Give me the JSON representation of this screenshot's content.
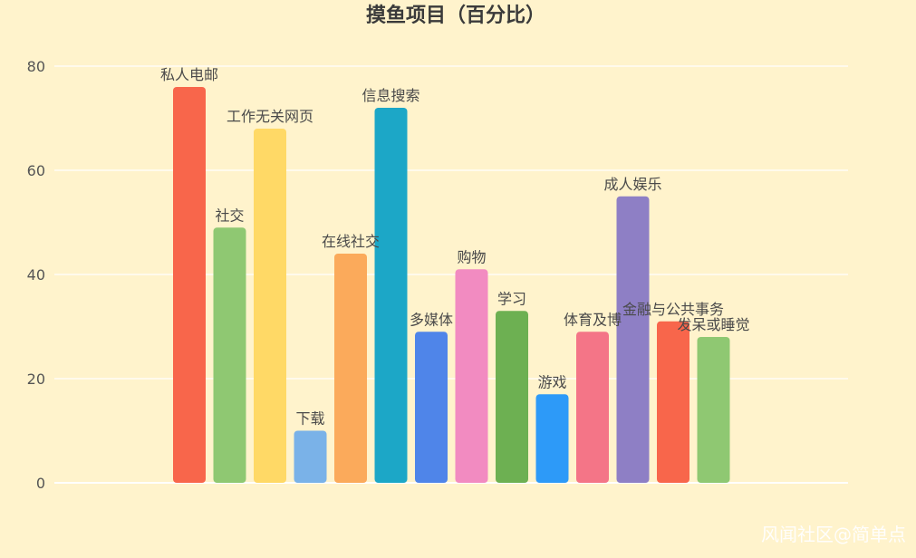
{
  "chart_data": {
    "type": "bar",
    "title": "摸鱼项目（百分比）",
    "xlabel": "",
    "ylabel": "",
    "ylim": [
      0,
      80
    ],
    "yticks": [
      0,
      20,
      40,
      60,
      80
    ],
    "grid": true,
    "categories": [
      "私人电邮",
      "社交",
      "工作无关网页",
      "下载",
      "在线社交",
      "信息搜索",
      "多媒体",
      "购物",
      "学习",
      "游戏",
      "体育及博彩",
      "成人娱乐",
      "金融与公共事务",
      "发呆或睡觉"
    ],
    "visible_labels": [
      "私人电邮",
      "社交",
      "工作无关网页",
      "下载",
      "在线社交",
      "信息搜索",
      "多媒体",
      "购物",
      "学习",
      "游戏",
      "体育及博",
      "成人娱乐",
      "金融与公共事务",
      "发呆或睡觉"
    ],
    "values": [
      76,
      49,
      68,
      10,
      44,
      72,
      29,
      41,
      33,
      17,
      29,
      55,
      31,
      28
    ],
    "colors": [
      "#F8664B",
      "#8FC872",
      "#FFD966",
      "#7AB2E8",
      "#FBAA5B",
      "#1CA7C7",
      "#4F85E9",
      "#F28BC1",
      "#6DB052",
      "#2D9AF8",
      "#F47587",
      "#8E7FC5",
      "#F8664B",
      "#8FC872"
    ]
  },
  "watermark": "风闻社区@简单点"
}
